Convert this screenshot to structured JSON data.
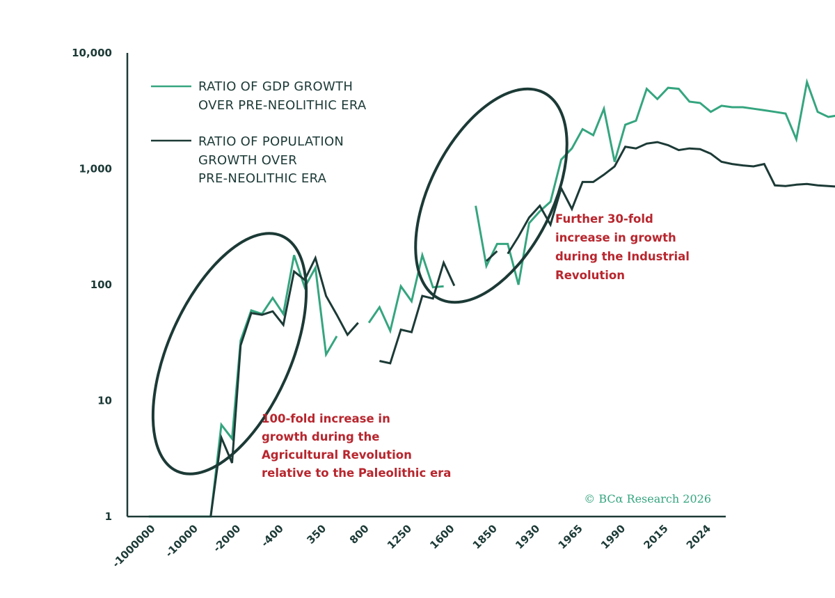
{
  "chart_data": {
    "type": "line",
    "categories": [
      "-1000000",
      "",
      "-10000",
      "",
      "-2000",
      "",
      "-400",
      "",
      "350",
      "",
      "800",
      "",
      "1250",
      "",
      "1600",
      "",
      "1850",
      "",
      "1930",
      "",
      "1965",
      "",
      "1990",
      "",
      "2015",
      "",
      "2024",
      ""
    ],
    "y_scale": "log",
    "ylim": [
      1,
      10000
    ],
    "yticks": [
      1,
      10,
      100,
      1000,
      10000
    ],
    "ytick_labels": [
      "1",
      "10",
      "100",
      "1,000",
      "10,000"
    ],
    "xtick_labels": [
      "-1000000",
      "-10000",
      "-2000",
      "-400",
      "350",
      "800",
      "1250",
      "1600",
      "1850",
      "1930",
      "1965",
      "1990",
      "2015",
      "2024"
    ],
    "grid": false,
    "legend_position": "top-left",
    "series": [
      {
        "name": "RATIO OF GDP GROWTH OVER PRE-NEOLITHIC ERA",
        "color": "#35a57f",
        "legend_lines": [
          "RATIO OF GDP GROWTH",
          "OVER PRE-NEOLITHIC ERA"
        ],
        "points": [
          [
            1,
            1
          ],
          [
            2,
            1
          ],
          [
            3,
            1
          ],
          [
            3.9,
            1
          ],
          [
            4.4,
            6.2
          ],
          [
            4.9,
            4.7
          ],
          [
            5.3,
            33
          ],
          [
            5.8,
            60
          ],
          [
            6.3,
            56
          ],
          [
            6.8,
            77
          ],
          [
            7.3,
            56
          ],
          [
            7.8,
            180
          ],
          [
            8.3,
            95
          ],
          [
            8.8,
            140
          ],
          [
            9.3,
            25
          ],
          [
            9.8,
            36
          ],
          null,
          [
            11.3,
            47
          ],
          [
            11.8,
            64
          ],
          [
            12.3,
            40
          ],
          [
            12.8,
            97
          ],
          [
            13.3,
            72
          ],
          [
            13.8,
            180
          ],
          [
            14.3,
            95
          ],
          [
            14.8,
            97
          ],
          null,
          [
            16.3,
            480
          ],
          [
            16.8,
            145
          ],
          [
            17.3,
            225
          ],
          [
            17.8,
            225
          ],
          [
            18.3,
            100
          ],
          [
            18.8,
            340
          ],
          [
            19.3,
            430
          ],
          [
            19.8,
            520
          ],
          [
            20.3,
            1200
          ],
          [
            20.8,
            1500
          ],
          [
            21.3,
            2200
          ],
          [
            21.8,
            1950
          ],
          [
            22.3,
            3300
          ],
          [
            22.8,
            1150
          ],
          [
            23.3,
            2400
          ],
          [
            23.8,
            2600
          ],
          [
            24.3,
            4900
          ],
          [
            24.8,
            4000
          ],
          [
            25.3,
            5000
          ],
          [
            25.8,
            4900
          ],
          [
            26.3,
            3800
          ],
          [
            26.8,
            3700
          ],
          [
            27.3,
            3100
          ],
          [
            27.8,
            3500
          ],
          [
            28.3,
            3400
          ],
          [
            28.8,
            3400
          ],
          [
            29.3,
            3300
          ],
          [
            29.8,
            3200
          ],
          [
            30.3,
            3100
          ],
          [
            30.8,
            3000
          ],
          [
            31.3,
            1800
          ],
          [
            31.8,
            5600
          ],
          [
            32.3,
            3100
          ],
          [
            32.8,
            2800
          ],
          [
            33.3,
            2900
          ],
          [
            33.8,
            2900
          ],
          [
            34.3,
            2600
          ]
        ]
      },
      {
        "name": "RATIO OF POPULATION GROWTH OVER PRE-NEOLITHIC ERA",
        "color": "#1c3a36",
        "legend_lines": [
          "RATIO OF POPULATION",
          "GROWTH OVER",
          "PRE-NEOLITHIC ERA"
        ],
        "points": [
          [
            3.9,
            1
          ],
          [
            4.4,
            4.8
          ],
          [
            4.9,
            2.9
          ],
          [
            5.3,
            30
          ],
          [
            5.8,
            57
          ],
          [
            6.3,
            55
          ],
          [
            6.8,
            59
          ],
          [
            7.3,
            45
          ],
          [
            7.8,
            130
          ],
          [
            8.3,
            110
          ],
          [
            8.8,
            170
          ],
          [
            9.3,
            80
          ],
          [
            9.8,
            55
          ],
          [
            10.3,
            37
          ],
          [
            10.8,
            47
          ],
          null,
          [
            11.8,
            22
          ],
          [
            12.3,
            21
          ],
          [
            12.8,
            41
          ],
          [
            13.3,
            39
          ],
          [
            13.8,
            80
          ],
          [
            14.3,
            76
          ],
          [
            14.8,
            155
          ],
          [
            15.3,
            98
          ],
          null,
          [
            16.8,
            160
          ],
          [
            17.3,
            195
          ],
          null,
          [
            17.8,
            185
          ],
          [
            18.3,
            260
          ],
          [
            18.8,
            380
          ],
          [
            19.3,
            480
          ],
          [
            19.8,
            330
          ],
          [
            20.3,
            680
          ],
          [
            20.8,
            450
          ],
          [
            21.3,
            770
          ],
          [
            21.8,
            770
          ],
          [
            22.3,
            890
          ],
          [
            22.8,
            1050
          ],
          [
            23.3,
            1550
          ],
          [
            23.8,
            1500
          ],
          [
            24.3,
            1650
          ],
          [
            24.8,
            1700
          ],
          [
            25.3,
            1600
          ],
          [
            25.8,
            1450
          ],
          [
            26.3,
            1500
          ],
          [
            26.8,
            1480
          ],
          [
            27.3,
            1350
          ],
          [
            27.8,
            1150
          ],
          [
            28.3,
            1100
          ],
          [
            28.8,
            1070
          ],
          [
            29.3,
            1050
          ],
          [
            29.8,
            1100
          ],
          [
            30.3,
            720
          ],
          [
            30.8,
            710
          ],
          [
            31.3,
            730
          ],
          [
            31.8,
            740
          ],
          [
            32.3,
            720
          ],
          [
            32.8,
            710
          ],
          [
            33.3,
            700
          ]
        ]
      }
    ],
    "annotations": [
      {
        "lines": [
          "100-fold increase in",
          "growth during the",
          "Agricultural Revolution",
          "relative to the Paleolithic era"
        ]
      },
      {
        "lines": [
          "Further 30-fold",
          "increase in growth",
          "during the Industrial",
          "Revolution"
        ]
      }
    ],
    "credit": "© BCα Research 2026"
  }
}
